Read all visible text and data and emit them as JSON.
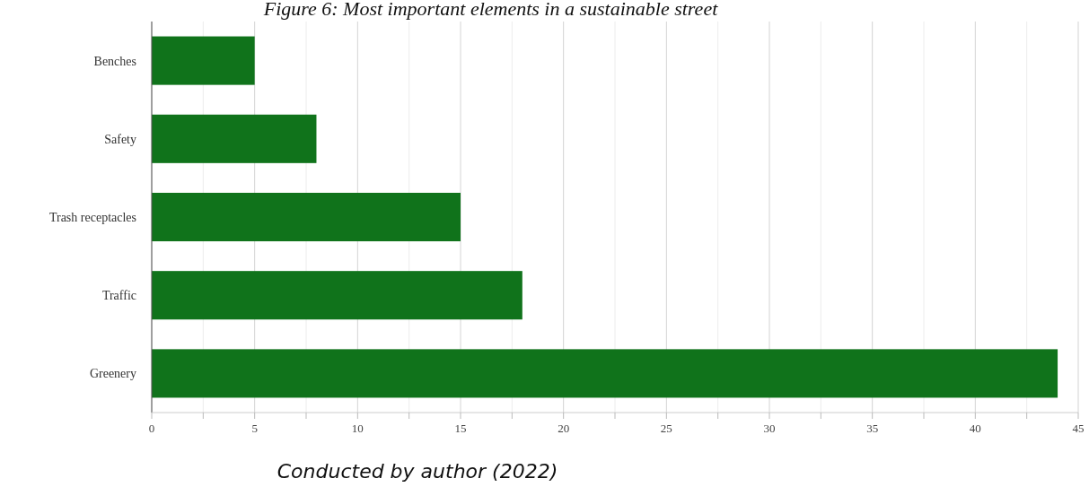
{
  "chart_data": {
    "type": "bar",
    "orientation": "horizontal",
    "title": "Figure 6: Most important elements in a sustainable street",
    "annotations": [
      "Conducted by author (2022)"
    ],
    "categories": [
      "Benches",
      "Safety",
      "Trash receptacles",
      "Traffic",
      "Greenery"
    ],
    "values": [
      5,
      8,
      15,
      18,
      44
    ],
    "color": "#10731b",
    "xlim": [
      0,
      45
    ],
    "xticks": [
      0,
      {
        "value": 2.5,
        "label": null
      },
      5,
      {
        "value": 7.5,
        "label": null
      },
      10,
      {
        "value": 12.5,
        "label": null
      },
      15,
      {
        "value": 17.5,
        "label": null
      },
      20,
      {
        "value": 22.5,
        "label": null
      },
      25,
      {
        "value": 27.5,
        "label": null
      },
      30,
      {
        "value": 32.5,
        "label": null
      },
      35,
      {
        "value": 37.5,
        "label": null
      },
      40,
      {
        "value": 42.5,
        "label": null
      },
      45
    ],
    "grid": "x"
  }
}
